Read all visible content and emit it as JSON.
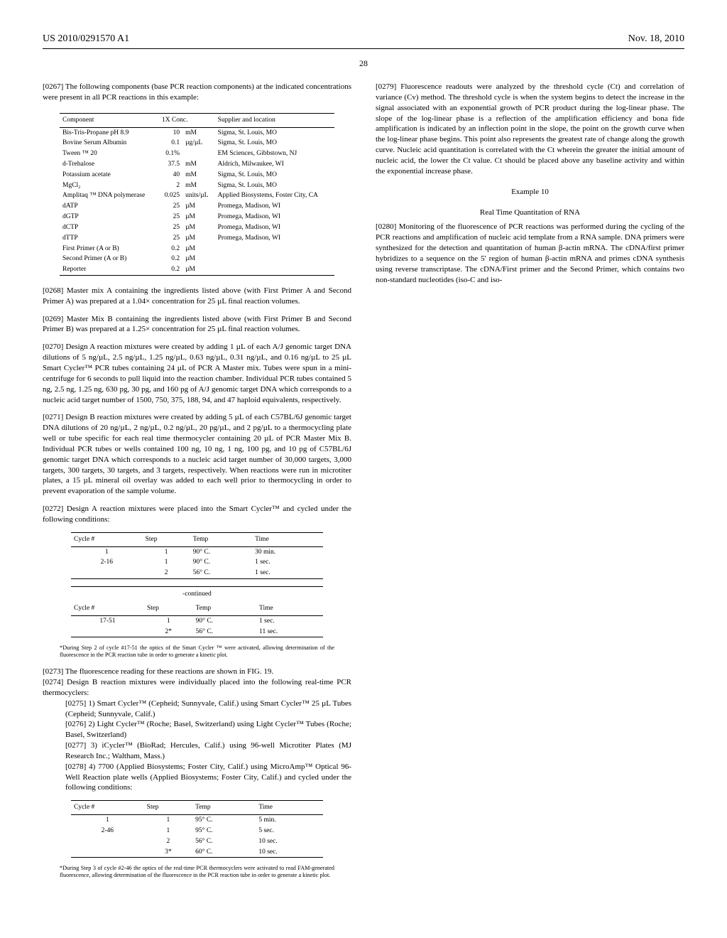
{
  "header": {
    "pub_no": "US 2010/0291570 A1",
    "date": "Nov. 18, 2010"
  },
  "page_number": "28",
  "paras": {
    "p0267": "[0267]    The following components (base PCR reaction components) at the indicated concentrations were present in all PCR reactions in this example:",
    "p0268": "[0268]    Master mix A containing the ingredients listed above (with First Primer A and Second Primer A) was prepared at a 1.04× concentration for 25 µL final reaction volumes.",
    "p0269": "[0269]    Master Mix B containing the ingredients listed above (with First Primer B and Second Primer B) was prepared at a 1.25× concentration for 25 µL final reaction volumes.",
    "p0270": "[0270]    Design A reaction mixtures were created by adding 1 µL of each A/J genomic target DNA dilutions of 5 ng/µL, 2.5 ng/µL, 1.25 ng/µL, 0.63 ng/µL, 0.31 ng/µL, and 0.16 ng/µL to 25 µL Smart Cycler™ PCR tubes containing 24 µL of PCR A Master mix. Tubes were spun in a mini-centrifuge for 6 seconds to pull liquid into the reaction chamber. Individual PCR tubes contained 5 ng, 2.5 ng, 1.25 ng, 630 pg, 30 pg, and 160 pg of A/J genomic target DNA which corresponds to a nucleic acid target number of 1500, 750, 375, 188, 94, and 47 haploid equivalents, respectively.",
    "p0271": "[0271]    Design B reaction mixtures were created by adding 5 µL of each C57BL/6J genomic target DNA dilutions of 20 ng/µL, 2 ng/µL, 0.2 ng/µL, 20 pg/µL, and 2 pg/µL to a thermocycling plate well or tube specific for each real time thermocycler containing 20 µL of PCR Master Mix B. Individual PCR tubes or wells contained 100 ng, 10 ng, 1 ng, 100 pg, and 10 pg of C57BL/6J genomic target DNA which corresponds to a nucleic acid target number of 30,000 targets, 3,000 targets, 300 targets, 30 targets, and 3 targets, respectively. When reactions were run in microtiter plates, a 15 µL mineral oil overlay was added to each well prior to thermocycling in order to prevent evaporation of the sample volume.",
    "p0272": "[0272]    Design A reaction mixtures were placed into the Smart Cycler™ and cycled under the following conditions:",
    "p0273": "[0273]    The fluorescence reading for these reactions are shown in FIG. 19.",
    "p0274": "[0274]    Design B reaction mixtures were individually placed into the following real-time PCR thermocyclers:",
    "p0275": "[0275]    1) Smart Cycler™ (Cepheid; Sunnyvale, Calif.) using Smart Cycler™ 25 µL Tubes (Cepheid; Sunnyvale, Calif.)",
    "p0276": "[0276]    2) Light Cycler™ (Roche; Basel, Switzerland) using Light Cycler™ Tubes (Roche; Basel, Switzerland)",
    "p0277": "[0277]    3) iCycler™ (BioRad; Hercules, Calif.) using 96-well Microtiter Plates (MJ Research Inc.; Waltham, Mass.)",
    "p0278": "[0278]    4) 7700 (Applied Biosystems; Foster City, Calif.) using MicroAmp™ Optical 96-Well Reaction plate wells (Applied Biosystems; Foster City, Calif.) and cycled under the following conditions:",
    "p0279": "[0279]    Fluorescence readouts were analyzed by the threshold cycle (Ct) and correlation of variance (Cv) method. The threshold cycle is when the system begins to detect the increase in the signal associated with an exponential growth of PCR product during the log-linear phase. The slope of the log-linear phase is a reflection of the amplification efficiency and bona fide amplification is indicated by an inflection point in the slope, the point on the growth curve when the log-linear phase begins. This point also represents the greatest rate of change along the growth curve. Nucleic acid quantitation is correlated with the Ct wherein the greater the initial amount of nucleic acid, the lower the Ct value. Ct should be placed above any baseline activity and within the exponential increase phase.",
    "p0280": "[0280]    Monitoring of the fluorescence of PCR reactions was performed during the cycling of the PCR reactions and amplification of nucleic acid template from a RNA sample. DNA primers were synthesized for the detection and quantitation of human β-actin mRNA. The cDNA/first primer hybridizes to a sequence on the 5' region of human β-actin mRNA and primes cDNA synthesis using reverse transcriptase. The cDNA/First primer and the Second Primer, which contains two non-standard nucleotides (iso-C and iso-"
  },
  "footnotes": {
    "f1": "*During Step 2 of cycle #17-51 the optics of the Smart Cycler ™ were activated, allowing determination of the fluorescence in the PCR reaction tube in order to generate a kinetic plot.",
    "f2": "*During Step 3 of cycle #2-46 the optics of the real-time PCR thermocyclers were activated to read FAM-generated fluorescence, allowing determination of the fluorescence in the PCR reaction tube in order to generate a kinetic plot."
  },
  "example": {
    "num": "Example 10",
    "title": "Real Time Quantitation of RNA"
  },
  "table1": {
    "cols": [
      "Component",
      "1X Conc.",
      "Supplier and location"
    ],
    "rows": [
      [
        "Bis-Tris-Propane pH 8.9",
        "10",
        "mM",
        "Sigma, St. Louis, MO"
      ],
      [
        "Bovine Serum Albumin",
        "0.1",
        "µg/µL",
        "Sigma, St. Louis, MO"
      ],
      [
        "Tween ™ 20",
        "0.1%",
        "",
        "EM Sciences, Gibbstown, NJ"
      ],
      [
        "d-Trehalose",
        "37.5",
        "mM",
        "Aldrich, Milwaukee, WI"
      ],
      [
        "Potassium acetate",
        "40",
        "mM",
        "Sigma, St. Louis, MO"
      ],
      [
        "MgCl₂",
        "2",
        "mM",
        "Sigma, St. Louis, MO"
      ],
      [
        "Amplitaq ™ DNA polymerase",
        "0.025",
        "units/µL",
        "Applied Biosystems, Foster City, CA"
      ],
      [
        "dATP",
        "25",
        "µM",
        "Promega, Madison, WI"
      ],
      [
        "dGTP",
        "25",
        "µM",
        "Promega, Madison, WI"
      ],
      [
        "dCTP",
        "25",
        "µM",
        "Promega, Madison, WI"
      ],
      [
        "dTTP",
        "25",
        "µM",
        "Promega, Madison, WI"
      ],
      [
        "First Primer (A or B)",
        "0.2",
        "µM",
        ""
      ],
      [
        "Second Primer (A or B)",
        "0.2",
        "µM",
        ""
      ],
      [
        "Reporter",
        "0.2",
        "µM",
        ""
      ]
    ]
  },
  "table2": {
    "cols": [
      "Cycle #",
      "Step",
      "Temp",
      "Time"
    ],
    "rows": [
      [
        "1",
        "1",
        "90° C.",
        "30 min."
      ],
      [
        "2-16",
        "1",
        "90° C.",
        "1 sec."
      ],
      [
        "",
        "2",
        "56° C.",
        "1 sec."
      ]
    ]
  },
  "table2b": {
    "caption": "-continued",
    "cols": [
      "Cycle #",
      "Step",
      "Temp",
      "Time"
    ],
    "rows": [
      [
        "17-51",
        "1",
        "90° C.",
        "1 sec."
      ],
      [
        "",
        "2*",
        "56° C.",
        "11 sec."
      ]
    ]
  },
  "table3": {
    "cols": [
      "Cycle #",
      "Step",
      "Temp",
      "Time"
    ],
    "rows": [
      [
        "1",
        "1",
        "95° C.",
        "5 min."
      ],
      [
        "2-46",
        "1",
        "95° C.",
        "5 sec."
      ],
      [
        "",
        "2",
        "56° C.",
        "10 sec."
      ],
      [
        "",
        "3*",
        "60° C.",
        "10 sec."
      ]
    ]
  }
}
